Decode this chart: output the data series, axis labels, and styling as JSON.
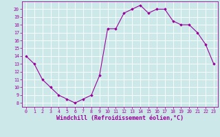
{
  "x": [
    0,
    1,
    2,
    3,
    4,
    5,
    6,
    7,
    8,
    9,
    10,
    11,
    12,
    13,
    14,
    15,
    16,
    17,
    18,
    19,
    20,
    21,
    22,
    23
  ],
  "y": [
    14,
    13,
    11,
    10,
    9,
    8.5,
    8,
    8.5,
    9,
    11.5,
    17.5,
    17.5,
    19.5,
    20,
    20.5,
    19.5,
    20,
    20,
    18.5,
    18,
    18,
    17,
    15.5,
    13
  ],
  "line_color": "#990099",
  "marker": "D",
  "markersize": 1.8,
  "linewidth": 0.8,
  "xlabel": "Windchill (Refroidissement éolien,°C)",
  "xlabel_color": "#990099",
  "ylim": [
    7.5,
    21
  ],
  "xlim": [
    -0.5,
    23.5
  ],
  "yticks": [
    8,
    9,
    10,
    11,
    12,
    13,
    14,
    15,
    16,
    17,
    18,
    19,
    20
  ],
  "xticks": [
    0,
    1,
    2,
    3,
    4,
    5,
    6,
    7,
    8,
    9,
    10,
    11,
    12,
    13,
    14,
    15,
    16,
    17,
    18,
    19,
    20,
    21,
    22,
    23
  ],
  "bg_color": "#cce8e8",
  "grid_color": "#ffffff",
  "tick_color": "#990099",
  "tick_fontsize": 4.8,
  "xlabel_fontsize": 6.0,
  "spine_color": "#990099"
}
